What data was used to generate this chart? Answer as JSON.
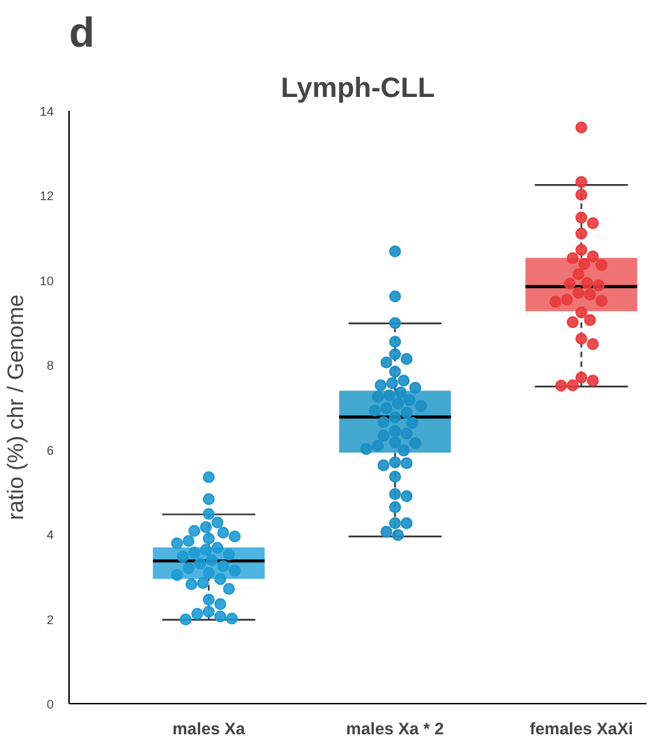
{
  "chart_data": {
    "type": "box",
    "title": "Lymph-CLL",
    "ylabel": "ratio (%) chr / Genome",
    "annotations": [
      "d"
    ],
    "categories": [
      "males Xa",
      "males Xa * 2",
      "females XaXi"
    ],
    "ylim": [
      0,
      14
    ],
    "yticks": [
      0,
      2,
      4,
      6,
      8,
      10,
      12,
      14
    ],
    "grid": false,
    "marker": "circle",
    "series": [
      {
        "colors": [
          "#45b0dd",
          "#3aa3cf",
          "#ef6c6c"
        ],
        "boxes": [
          {
            "low": 1.98,
            "q1": 2.95,
            "median": 3.37,
            "q3": 3.69,
            "high": 4.47
          },
          {
            "low": 3.95,
            "q1": 5.93,
            "median": 6.77,
            "q3": 7.39,
            "high": 8.98
          },
          {
            "low": 7.49,
            "q1": 9.27,
            "median": 9.85,
            "q3": 10.53,
            "high": 12.25
          }
        ]
      },
      {
        "type": "scatter",
        "color": "#1f9ad3",
        "x": [
          "males Xa",
          "males Xa",
          "males Xa",
          "males Xa",
          "males Xa",
          "males Xa",
          "males Xa",
          "males Xa",
          "males Xa",
          "males Xa",
          "males Xa",
          "males Xa",
          "males Xa",
          "males Xa",
          "males Xa",
          "males Xa",
          "males Xa",
          "males Xa",
          "males Xa",
          "males Xa",
          "males Xa",
          "males Xa",
          "males Xa",
          "males Xa",
          "males Xa",
          "males Xa",
          "males Xa",
          "males Xa",
          "males Xa",
          "males Xa",
          "males Xa",
          "males Xa",
          "males Xa",
          "males Xa"
        ],
        "values": [
          5.35,
          4.83,
          4.48,
          4.28,
          4.17,
          4.08,
          4.04,
          3.95,
          3.9,
          3.84,
          3.79,
          3.68,
          3.63,
          3.57,
          3.52,
          3.47,
          3.39,
          3.31,
          3.25,
          3.2,
          3.14,
          3.09,
          3.04,
          2.94,
          2.85,
          2.82,
          2.71,
          2.46,
          2.35,
          2.17,
          2.12,
          2.06,
          2.01,
          1.99
        ]
      },
      {
        "type": "scatter",
        "color": "#1b8fc4",
        "x": [
          "males Xa * 2",
          "males Xa * 2",
          "males Xa * 2",
          "males Xa * 2",
          "males Xa * 2",
          "males Xa * 2",
          "males Xa * 2",
          "males Xa * 2",
          "males Xa * 2",
          "males Xa * 2",
          "males Xa * 2",
          "males Xa * 2",
          "males Xa * 2",
          "males Xa * 2",
          "males Xa * 2",
          "males Xa * 2",
          "males Xa * 2",
          "males Xa * 2",
          "males Xa * 2",
          "males Xa * 2",
          "males Xa * 2",
          "males Xa * 2",
          "males Xa * 2",
          "males Xa * 2",
          "males Xa * 2",
          "males Xa * 2",
          "males Xa * 2",
          "males Xa * 2",
          "males Xa * 2",
          "males Xa * 2",
          "males Xa * 2",
          "males Xa * 2",
          "males Xa * 2",
          "males Xa * 2",
          "males Xa * 2",
          "males Xa * 2",
          "males Xa * 2",
          "males Xa * 2",
          "males Xa * 2",
          "males Xa * 2",
          "males Xa * 2",
          "males Xa * 2",
          "males Xa * 2"
        ],
        "values": [
          10.68,
          9.62,
          8.99,
          8.55,
          8.25,
          8.14,
          8.06,
          7.84,
          7.63,
          7.57,
          7.52,
          7.46,
          7.35,
          7.28,
          7.25,
          7.17,
          7.09,
          7.03,
          6.98,
          6.92,
          6.87,
          6.76,
          6.65,
          6.63,
          6.44,
          6.38,
          6.33,
          6.17,
          6.15,
          6.09,
          6.01,
          5.98,
          5.7,
          5.68,
          5.63,
          5.36,
          4.95,
          4.9,
          4.64,
          4.26,
          4.26,
          4.06,
          3.98
        ]
      },
      {
        "type": "scatter",
        "color": "#e83a3c",
        "x": [
          "females XaXi",
          "females XaXi",
          "females XaXi",
          "females XaXi",
          "females XaXi",
          "females XaXi",
          "females XaXi",
          "females XaXi",
          "females XaXi",
          "females XaXi",
          "females XaXi",
          "females XaXi",
          "females XaXi",
          "females XaXi",
          "females XaXi",
          "females XaXi",
          "females XaXi",
          "females XaXi",
          "females XaXi",
          "females XaXi",
          "females XaXi",
          "females XaXi",
          "females XaXi",
          "females XaXi",
          "females XaXi",
          "females XaXi",
          "females XaXi",
          "females XaXi",
          "females XaXi"
        ],
        "values": [
          13.61,
          12.32,
          12.02,
          11.48,
          11.35,
          11.1,
          10.72,
          10.56,
          10.52,
          10.38,
          10.36,
          10.14,
          9.93,
          9.92,
          9.88,
          9.7,
          9.66,
          9.54,
          9.51,
          9.49,
          9.24,
          9.06,
          9.01,
          8.62,
          8.49,
          7.7,
          7.63,
          7.52,
          7.51
        ]
      }
    ]
  }
}
